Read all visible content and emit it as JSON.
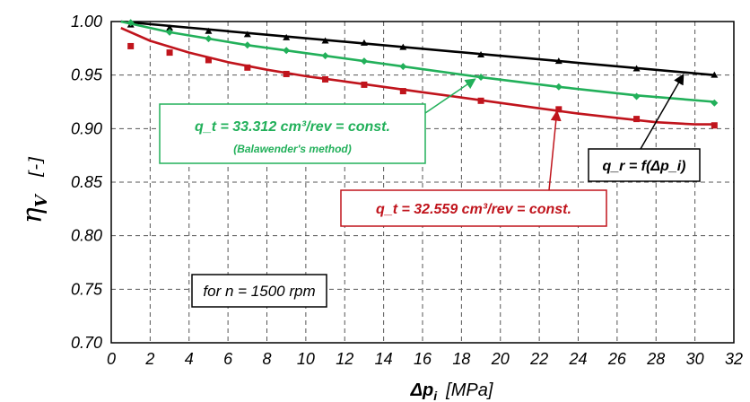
{
  "chart_data": {
    "type": "scatter",
    "xlabel_symbol": "Δp",
    "xlabel_sub": "i",
    "xlabel_unit": "[MPa]",
    "ylabel_symbol": "η",
    "ylabel_sub": "V",
    "ylabel_unit": "[-]",
    "xlim": [
      0,
      32
    ],
    "ylim": [
      0.7,
      1.0
    ],
    "x_ticks": [
      "0",
      "2",
      "4",
      "6",
      "8",
      "10",
      "12",
      "14",
      "16",
      "18",
      "20",
      "22",
      "24",
      "26",
      "28",
      "30",
      "32"
    ],
    "y_ticks": [
      "0.70",
      "0.75",
      "0.80",
      "0.85",
      "0.90",
      "0.95",
      "1.00"
    ],
    "grid": true,
    "series": [
      {
        "label": "q_r = f(Δp_i)",
        "color": "#000000",
        "marker": "triangle",
        "points": [
          [
            1,
            0.997
          ],
          [
            3,
            0.994
          ],
          [
            5,
            0.991
          ],
          [
            7,
            0.988
          ],
          [
            9,
            0.985
          ],
          [
            11,
            0.982
          ],
          [
            13,
            0.98
          ],
          [
            15,
            0.976
          ],
          [
            19,
            0.969
          ],
          [
            23,
            0.963
          ],
          [
            27,
            0.956
          ],
          [
            31,
            0.95
          ]
        ],
        "fit": [
          [
            0.5,
            1.0
          ],
          [
            31,
            0.95
          ]
        ]
      },
      {
        "label": "q_t = 33.312 cm³/rev = const.",
        "color": "#22b05a",
        "marker": "diamond",
        "points": [
          [
            1,
            0.999
          ],
          [
            3,
            0.99
          ],
          [
            5,
            0.984
          ],
          [
            7,
            0.978
          ],
          [
            9,
            0.973
          ],
          [
            11,
            0.968
          ],
          [
            13,
            0.963
          ],
          [
            15,
            0.958
          ],
          [
            19,
            0.948
          ],
          [
            23,
            0.939
          ],
          [
            27,
            0.93
          ],
          [
            31,
            0.924
          ]
        ],
        "fit": [
          [
            0.5,
            1.0
          ],
          [
            3,
            0.99
          ],
          [
            7,
            0.978
          ],
          [
            11,
            0.968
          ],
          [
            15,
            0.958
          ],
          [
            19,
            0.948
          ],
          [
            23,
            0.939
          ],
          [
            27,
            0.931
          ],
          [
            31,
            0.925
          ]
        ]
      },
      {
        "label": "q_t = 32.559 cm³/rev = const.",
        "color": "#c0141c",
        "marker": "square",
        "points": [
          [
            1,
            0.977
          ],
          [
            3,
            0.971
          ],
          [
            5,
            0.964
          ],
          [
            7,
            0.957
          ],
          [
            9,
            0.951
          ],
          [
            11,
            0.946
          ],
          [
            13,
            0.941
          ],
          [
            15,
            0.935
          ],
          [
            19,
            0.926
          ],
          [
            23,
            0.918
          ],
          [
            27,
            0.909
          ],
          [
            31,
            0.903
          ]
        ],
        "fit": [
          [
            0.5,
            0.994
          ],
          [
            2,
            0.982
          ],
          [
            4,
            0.971
          ],
          [
            6,
            0.962
          ],
          [
            8,
            0.955
          ],
          [
            10,
            0.949
          ],
          [
            12,
            0.944
          ],
          [
            14,
            0.939
          ],
          [
            16,
            0.934
          ],
          [
            18,
            0.929
          ],
          [
            20,
            0.924
          ],
          [
            22,
            0.919
          ],
          [
            24,
            0.914
          ],
          [
            26,
            0.91
          ],
          [
            28,
            0.906
          ],
          [
            30,
            0.904
          ],
          [
            31,
            0.904
          ]
        ]
      }
    ],
    "annotations": [
      {
        "id": "green",
        "lines": [
          "q_t = 33.312 cm³/rev = const.",
          "(Balawender's method)"
        ],
        "color": "#22b05a",
        "arrow_to": [
          18.8,
          0.948
        ]
      },
      {
        "id": "red",
        "lines": [
          "q_t = 32.559 cm³/rev = const."
        ],
        "color": "#c0141c",
        "arrow_to": [
          23,
          0.918
        ]
      },
      {
        "id": "black",
        "lines": [
          "q_r = f(Δp_i)"
        ],
        "color": "#000000",
        "arrow_to": [
          29.5,
          0.953
        ]
      },
      {
        "id": "rpm",
        "lines": [
          "for n = 1500 rpm"
        ],
        "color": "#000000"
      }
    ]
  }
}
